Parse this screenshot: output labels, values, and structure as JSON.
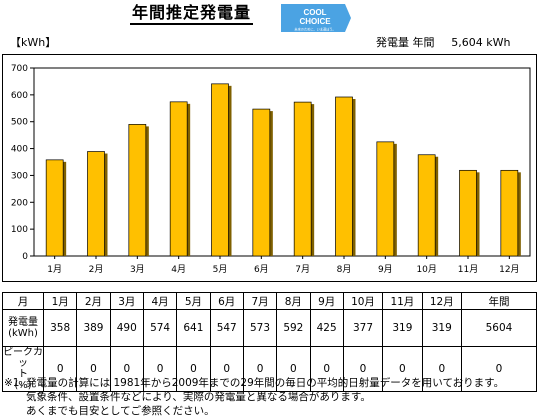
{
  "header": {
    "title": "年間推定発電量",
    "logo_line1": "COOL",
    "logo_line2": "CHOICE",
    "logo_tagline": "未来のために、いま選ぼう。",
    "unit": "【kWh】",
    "annual_label": "発電量 年間",
    "annual_value": "5,604 kWh"
  },
  "colors": {
    "bar": "#ffc000",
    "bar_shadow": "#7f6000",
    "logo": "#4ba3e3"
  },
  "chart_data": {
    "type": "bar",
    "categories": [
      "1月",
      "2月",
      "3月",
      "4月",
      "5月",
      "6月",
      "7月",
      "8月",
      "9月",
      "10月",
      "11月",
      "12月"
    ],
    "values": [
      358,
      389,
      490,
      574,
      641,
      547,
      573,
      592,
      425,
      377,
      319,
      319
    ],
    "ylim": [
      0,
      700
    ],
    "yticks": [
      0,
      100,
      200,
      300,
      400,
      500,
      600,
      700
    ],
    "grid": false,
    "legend": "none"
  },
  "table": {
    "month_header": "月",
    "annual_header": "年間",
    "row_gen_label": "発電量\n(kWh)",
    "row_gen_label_1": "発電量",
    "row_gen_label_2": "(kWh)",
    "row_peak_label_1": "ピークカッ",
    "row_peak_label_2": "ト",
    "row_peak_label_3": "(%)",
    "months": [
      "1月",
      "2月",
      "3月",
      "4月",
      "5月",
      "6月",
      "7月",
      "8月",
      "9月",
      "10月",
      "11月",
      "12月"
    ],
    "gen": [
      "358",
      "389",
      "490",
      "574",
      "641",
      "547",
      "573",
      "592",
      "425",
      "377",
      "319",
      "319"
    ],
    "gen_total": "5604",
    "peak": [
      "0",
      "0",
      "0",
      "0",
      "0",
      "0",
      "0",
      "0",
      "0",
      "0",
      "0",
      "0"
    ],
    "peak_total": "0"
  },
  "notes": {
    "line1": "※1. 発電量の計算には 1981年から2009年までの29年間の毎日の平均的日射量データを用いております。",
    "line2": "気象条件、設置条件などにより、実際の発電量と異なる場合があります。",
    "line3": "あくまでも目安としてご参照ください。"
  }
}
